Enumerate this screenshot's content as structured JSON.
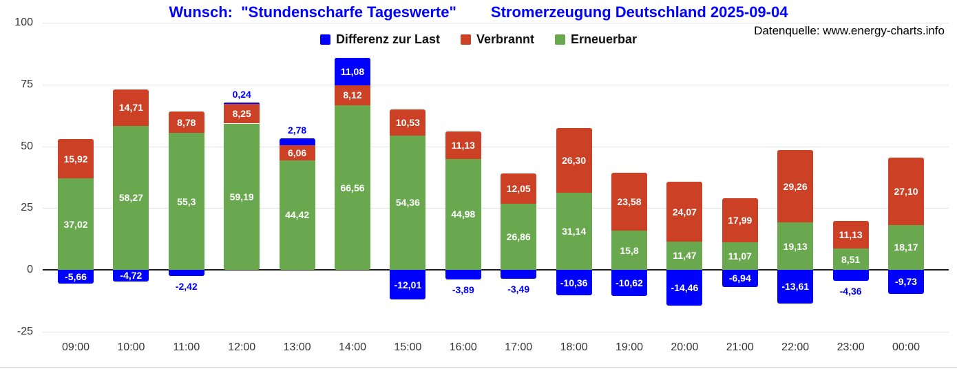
{
  "header": {
    "title_left": "Wunsch:  \"Stundenscharfe Tageswerte\"",
    "title_right": "Stromerzeugung Deutschland 2025-09-04",
    "title_color": "#0000ff",
    "datasource": "Datenquelle: www.energy-charts.info"
  },
  "legend": {
    "items": [
      {
        "label": "Differenz zur Last",
        "color": "#0000ff"
      },
      {
        "label": "Verbrannt",
        "color": "#cc4125"
      },
      {
        "label": "Erneuerbar",
        "color": "#6aa84f"
      }
    ]
  },
  "chart_data": {
    "type": "bar",
    "stacked": true,
    "title": "Wunsch: \"Stundenscharfe Tageswerte\" Stromerzeugung Deutschland 2025-09-04",
    "xlabel": "",
    "ylabel": "",
    "ylim": [
      -25,
      100
    ],
    "yticks": [
      100,
      75,
      50,
      25,
      0,
      -25
    ],
    "grid": true,
    "legend_position": "top",
    "categories": [
      "09:00",
      "10:00",
      "11:00",
      "12:00",
      "13:00",
      "14:00",
      "15:00",
      "16:00",
      "17:00",
      "18:00",
      "19:00",
      "20:00",
      "21:00",
      "22:00",
      "23:00",
      "00:00"
    ],
    "series": [
      {
        "name": "Erneuerbar",
        "color": "#6aa84f",
        "values": [
          37.02,
          58.27,
          55.3,
          59.19,
          44.42,
          66.56,
          54.36,
          44.98,
          26.86,
          31.14,
          15.8,
          11.47,
          11.07,
          19.13,
          8.51,
          18.17
        ],
        "labels": [
          "37,02",
          "58,27",
          "55,3",
          "59,19",
          "44,42",
          "66,56",
          "54,36",
          "44,98",
          "26,86",
          "31,14",
          "15,8",
          "11,47",
          "11,07",
          "19,13",
          "8,51",
          "18,17"
        ]
      },
      {
        "name": "Verbrannt",
        "color": "#cc4125",
        "values": [
          15.92,
          14.71,
          8.78,
          8.25,
          6.06,
          8.12,
          10.53,
          11.13,
          12.05,
          26.3,
          23.58,
          24.07,
          17.99,
          29.26,
          11.13,
          27.1
        ],
        "labels": [
          "15,92",
          "14,71",
          "8,78",
          "8,25",
          "6,06",
          "8,12",
          "10,53",
          "11,13",
          "12,05",
          "26,30",
          "23,58",
          "24,07",
          "17,99",
          "29,26",
          "11,13",
          "27,10"
        ]
      },
      {
        "name": "Differenz zur Last",
        "color": "#0000ff",
        "values": [
          -5.66,
          -4.72,
          -2.42,
          0.24,
          2.78,
          11.08,
          -12.01,
          -3.89,
          -3.49,
          -10.36,
          -10.62,
          -14.46,
          -6.94,
          -13.61,
          -4.36,
          -9.73
        ],
        "labels": [
          "-5,66",
          "-4,72",
          "-2,42",
          "0,24",
          "2,78",
          "11,08",
          "-12,01",
          "-3,89",
          "-3,49",
          "-10,36",
          "-10,62",
          "-14,46",
          "-6,94",
          "-13,61",
          "-4,36",
          "-9,73"
        ],
        "label_pos": [
          "inside",
          "inside",
          "below",
          "above",
          "above",
          "inside",
          "inside",
          "below",
          "below",
          "inside",
          "inside",
          "inside",
          "inside",
          "inside",
          "below",
          "inside"
        ]
      }
    ]
  }
}
